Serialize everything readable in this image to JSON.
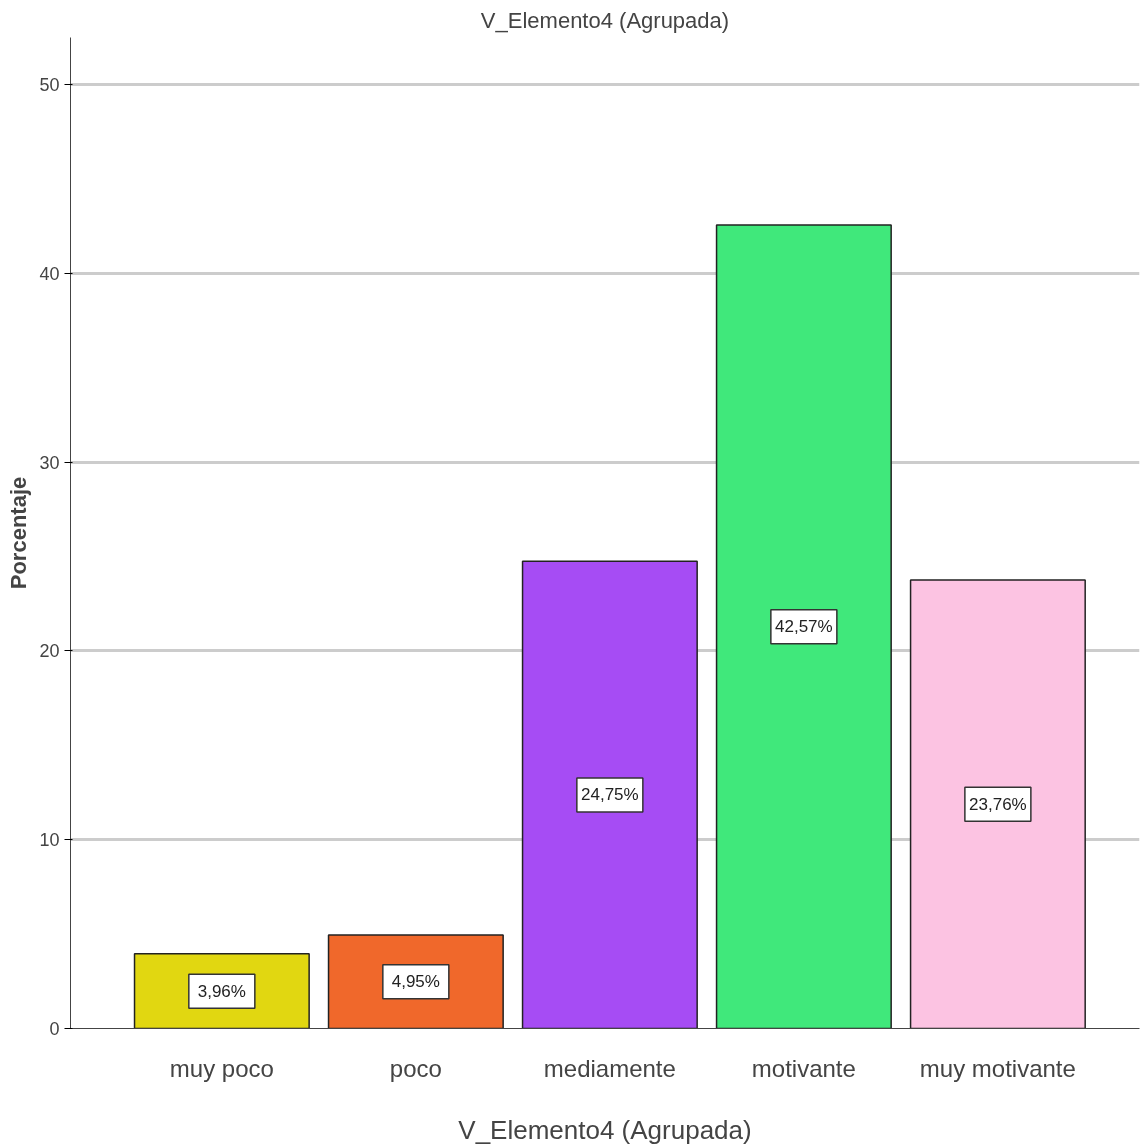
{
  "chart_data": {
    "type": "bar",
    "title": "V_Elemento4 (Agrupada)",
    "xlabel": "V_Elemento4 (Agrupada)",
    "ylabel": "Porcentaje",
    "categories": [
      "muy poco",
      "poco",
      "mediamente",
      "motivante",
      "muy motivante"
    ],
    "values": [
      3.96,
      4.95,
      24.75,
      42.57,
      23.76
    ],
    "colors": [
      "#e1d711",
      "#f0682b",
      "#a64cf4",
      "#40e87b",
      "#fcc3e2"
    ],
    "value_labels": [
      "3,96%",
      "4,95%",
      "24,75%",
      "42,57%",
      "23,76%"
    ],
    "ylim": [
      0,
      52.5
    ],
    "yticks": [
      0,
      10,
      20,
      30,
      40,
      50
    ],
    "grid": "y"
  }
}
